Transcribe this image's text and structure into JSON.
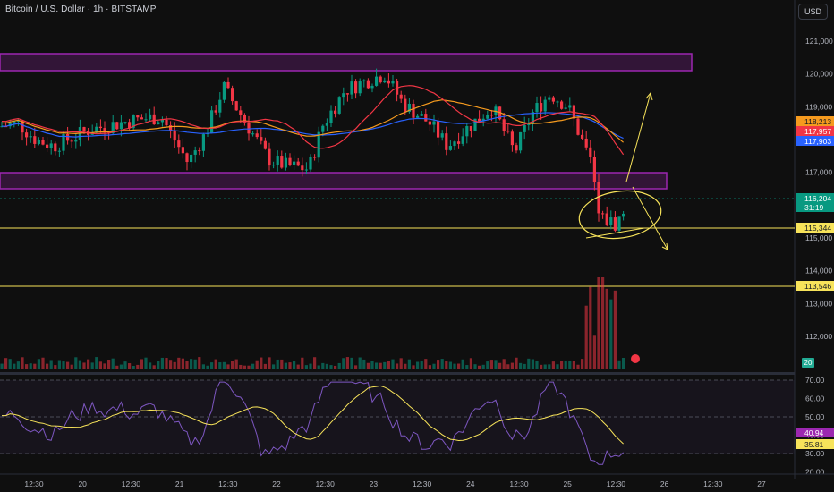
{
  "header": {
    "title": "Bitcoin / U.S. Dollar · 1h · BITSTAMP"
  },
  "currency_button": "USD",
  "price_axis": {
    "ticks": [
      "121,000",
      "120,000",
      "119,000",
      "118,000",
      "117,000",
      "116,000",
      "115,000",
      "114,000",
      "113,000",
      "112,000"
    ],
    "labels": [
      {
        "text": "118,213",
        "color": "#f59a1e"
      },
      {
        "text": "117,957",
        "color": "#f23645"
      },
      {
        "text": "117,903",
        "color": "#2962ff"
      },
      {
        "text": "116,204",
        "color": "#089981",
        "sub": "31:19"
      },
      {
        "text": "115,344",
        "color": "#f7e35a"
      },
      {
        "text": "113,546",
        "color": "#f7e35a"
      }
    ]
  },
  "volume_badge": "20",
  "rsi_axis": {
    "ticks": [
      "70.00",
      "60.00",
      "50.00",
      "40.00",
      "30.00",
      "20.00"
    ],
    "labels": [
      {
        "text": "40.94",
        "color": "#9c27b0"
      },
      {
        "text": "35.81",
        "color": "#f7e35a"
      }
    ]
  },
  "time_axis": [
    "12:30",
    "20",
    "12:30",
    "21",
    "12:30",
    "22",
    "12:30",
    "23",
    "12:30",
    "24",
    "12:30",
    "25",
    "12:30",
    "26",
    "12:30",
    "27"
  ],
  "colors": {
    "up": "#089981",
    "down": "#f23645",
    "zone": "#9c27b0",
    "level": "#f7e35a",
    "ma_fast": "#f23645",
    "ma_mid": "#f59a1e",
    "ma_slow": "#2962ff",
    "rsi": "#7e57c2",
    "rsi_ma": "#f7e35a"
  }
}
